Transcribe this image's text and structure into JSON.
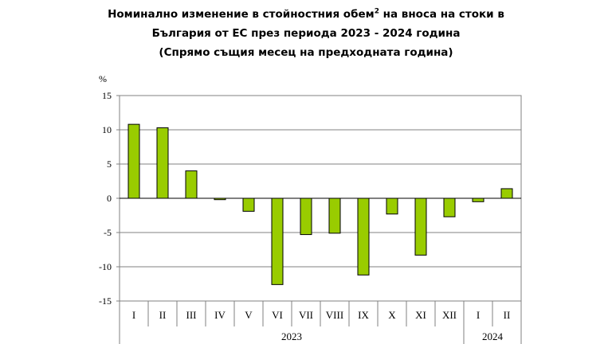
{
  "title": {
    "line1_main": "Номинално изменение в стойностния обем",
    "line1_sup": "2",
    "line1_end": " на вноса на стоки в",
    "line2": "България от ЕС през периода 2023 - 2024 година",
    "line3": "(Спрямо същия месец на предходната година)"
  },
  "chart_data": {
    "type": "bar",
    "ylabel": "%",
    "ylim": [
      -15,
      15
    ],
    "yticks": [
      15,
      10,
      5,
      0,
      -5,
      -10,
      -15
    ],
    "categories": [
      "I",
      "II",
      "III",
      "IV",
      "V",
      "VI",
      "VII",
      "VIII",
      "IX",
      "X",
      "XI",
      "XII",
      "I",
      "II"
    ],
    "values": [
      10.8,
      10.3,
      4.0,
      -0.2,
      -1.9,
      -12.6,
      -5.3,
      -5.1,
      -11.2,
      -2.3,
      -8.3,
      -2.7,
      -0.5,
      1.4
    ],
    "year_groups": [
      {
        "label": "2023",
        "count": 12
      },
      {
        "label": "2024",
        "count": 2
      }
    ],
    "bar_color": "#99cc00",
    "grid": true
  }
}
